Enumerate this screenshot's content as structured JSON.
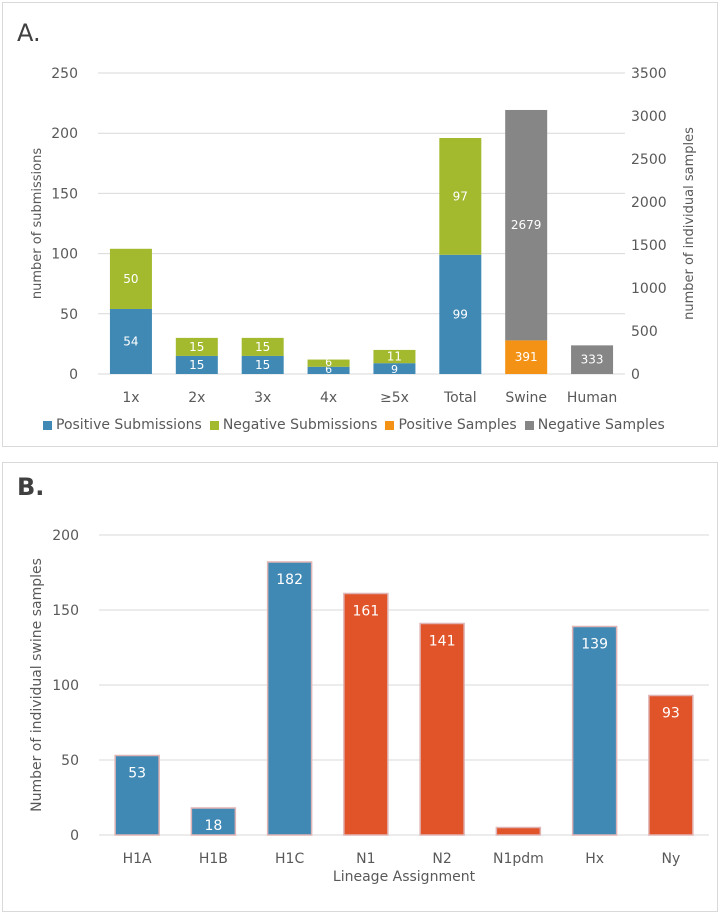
{
  "colors": {
    "positive_submissions": "#4189b5",
    "negative_submissions": "#a3b92e",
    "positive_samples": "#f39214",
    "negative_samples": "#868686",
    "h_lineage": "#4189b5",
    "n_lineage": "#e15329",
    "grid": "#d9d9d9",
    "axis_text": "#595959"
  },
  "panel_a": {
    "label": "A."
  },
  "panel_b": {
    "label": "B."
  },
  "chart_data": [
    {
      "type": "bar",
      "stacked": true,
      "title": "",
      "categories": [
        "1x",
        "2x",
        "3x",
        "4x",
        "≥5x",
        "Total",
        "Swine",
        "Human"
      ],
      "ylabel": "number of submissions",
      "y2label": "number of individual samples",
      "ylim": [
        0,
        250
      ],
      "yticks": [
        0,
        50,
        100,
        150,
        200,
        250
      ],
      "y2lim": [
        0,
        3500
      ],
      "y2ticks": [
        0,
        500,
        1000,
        1500,
        2000,
        2500,
        3000,
        3500
      ],
      "legend_position": "bottom",
      "series": [
        {
          "name": "Positive Submissions",
          "axis": "left",
          "values": [
            54,
            15,
            15,
            6,
            9,
            99,
            null,
            null
          ]
        },
        {
          "name": "Negative Submissions",
          "axis": "left",
          "values": [
            50,
            15,
            15,
            6,
            11,
            97,
            null,
            null
          ]
        },
        {
          "name": "Positive Samples",
          "axis": "right",
          "values": [
            null,
            null,
            null,
            null,
            null,
            null,
            391,
            null
          ]
        },
        {
          "name": "Negative Samples",
          "axis": "right",
          "values": [
            null,
            null,
            null,
            null,
            null,
            null,
            2679,
            333
          ]
        }
      ]
    },
    {
      "type": "bar",
      "title": "",
      "categories": [
        "H1A",
        "H1B",
        "H1C",
        "N1",
        "N2",
        "N1pdm",
        "Hx",
        "Ny"
      ],
      "values": [
        53,
        18,
        182,
        161,
        141,
        5,
        139,
        93
      ],
      "labels": [
        "53",
        "18",
        "182",
        "161",
        "141",
        "",
        "139",
        "93"
      ],
      "lineage_type": [
        "H",
        "H",
        "H",
        "N",
        "N",
        "N",
        "H",
        "N"
      ],
      "xlabel": "Lineage Assignment",
      "ylabel": "Number of individual swine samples",
      "ylim": [
        0,
        200
      ],
      "yticks": [
        0,
        50,
        100,
        150,
        200
      ]
    }
  ]
}
